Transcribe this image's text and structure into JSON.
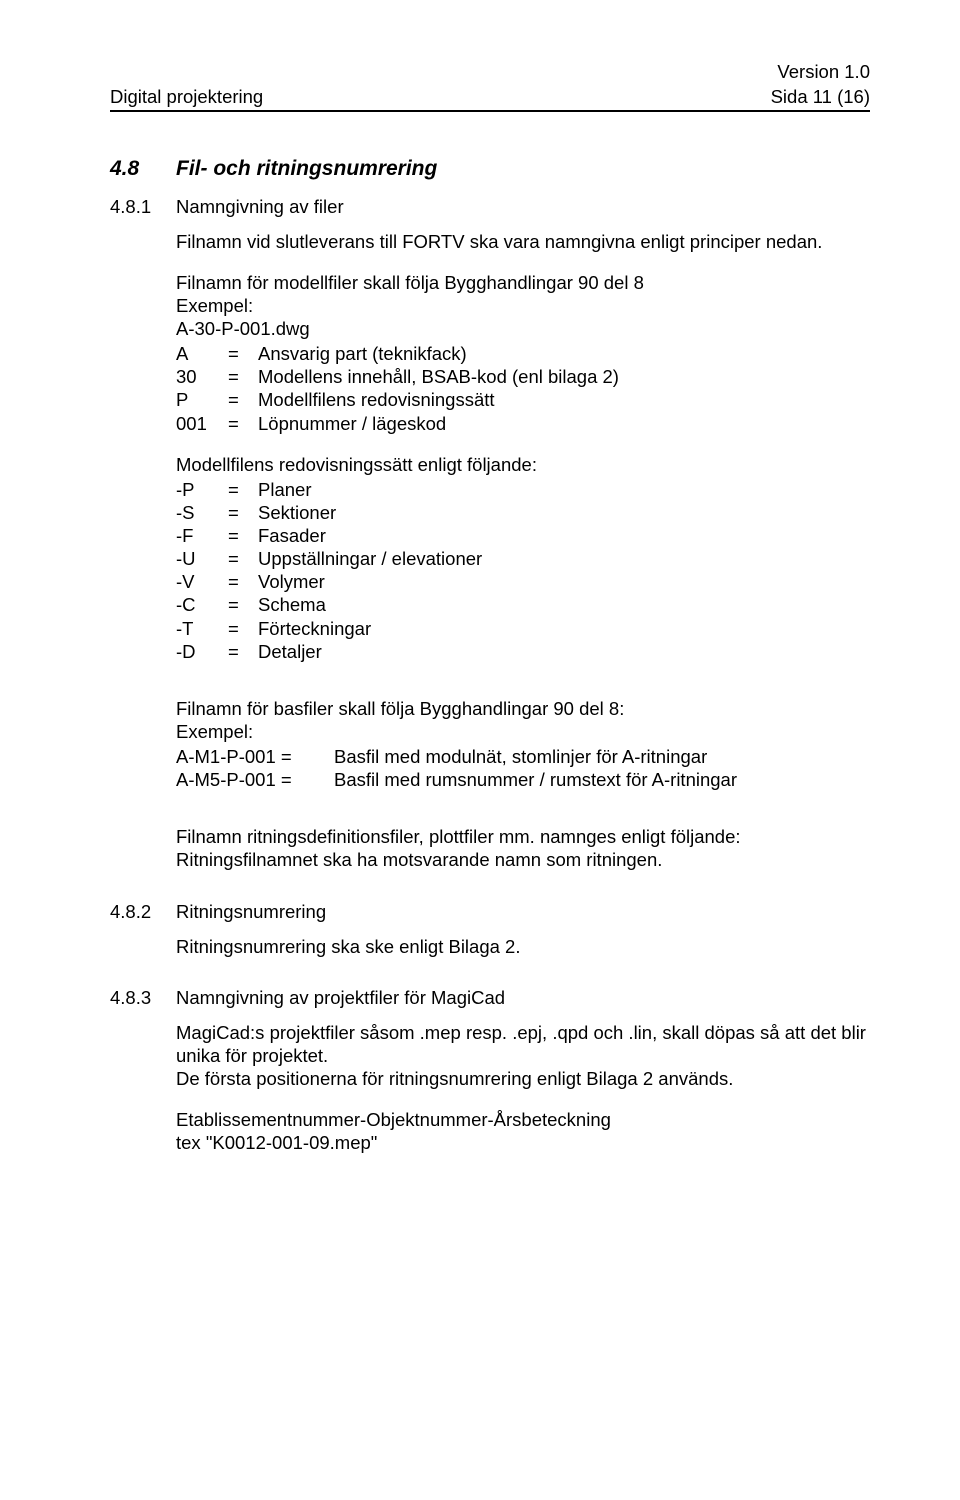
{
  "header": {
    "version": "Version 1.0",
    "doc_title": "Digital projektering",
    "page_ref": "Sida  11 (16)"
  },
  "s48": {
    "num": "4.8",
    "title": "Fil- och ritningsnumrering"
  },
  "s481": {
    "num": "4.8.1",
    "title": "Namngivning av filer",
    "intro": "Filnamn vid slutleverans till FORTV ska vara namngivna enligt principer nedan.",
    "model_intro_l1": "Filnamn för modellfiler skall följa Bygghandlingar 90 del 8",
    "model_intro_l2": "Exempel:",
    "model_intro_l3": "A-30-P-001.dwg",
    "defs1": [
      {
        "c1": "A",
        "c2": "=",
        "c3": "Ansvarig part (teknikfack)"
      },
      {
        "c1": "30",
        "c2": "=",
        "c3": "Modellens innehåll, BSAB-kod (enl bilaga 2)"
      },
      {
        "c1": "P",
        "c2": "=",
        "c3": "Modellfilens redovisningssätt"
      },
      {
        "c1": "001",
        "c2": "=",
        "c3": "Löpnummer / lägeskod"
      }
    ],
    "redov_intro": "Modellfilens redovisningssätt enligt följande:",
    "defs2": [
      {
        "c1": "-P",
        "c2": "=",
        "c3": "Planer"
      },
      {
        "c1": "-S",
        "c2": "=",
        "c3": "Sektioner"
      },
      {
        "c1": "-F",
        "c2": "=",
        "c3": "Fasader"
      },
      {
        "c1": "-U",
        "c2": "=",
        "c3": "Uppställningar / elevationer"
      },
      {
        "c1": "-V",
        "c2": "=",
        "c3": "Volymer"
      },
      {
        "c1": "-C",
        "c2": "=",
        "c3": "Schema"
      },
      {
        "c1": "-T",
        "c2": "=",
        "c3": "Förteckningar"
      },
      {
        "c1": "-D",
        "c2": "=",
        "c3": "Detaljer"
      }
    ],
    "bas_l1": "Filnamn för basfiler skall följa Bygghandlingar 90 del 8:",
    "bas_l2": "Exempel:",
    "bas_rows": [
      {
        "c1": "A-M1-P-001 =",
        "c2": "Basfil med modulnät, stomlinjer för A-ritningar"
      },
      {
        "c1": "A-M5-P-001 =",
        "c2": "Basfil med rumsnummer / rumstext för A-ritningar"
      }
    ],
    "ritdef_l1": "Filnamn ritningsdefinitionsfiler, plottfiler mm. namnges enligt följande:",
    "ritdef_l2": "Ritningsfilnamnet ska ha motsvarande namn som ritningen."
  },
  "s482": {
    "num": "4.8.2",
    "title": "Ritningsnumrering",
    "body": "Ritningsnumrering ska ske enligt Bilaga 2."
  },
  "s483": {
    "num": "4.8.3",
    "title": "Namngivning av projektfiler för MagiCad",
    "p1": "MagiCad:s projektfiler såsom .mep resp. .epj, .qpd och .lin, skall döpas så att det blir unika för projektet.",
    "p2": "De första positionerna för ritningsnumrering enligt Bilaga 2 används.",
    "p3": "Etablissementnummer-Objektnummer-Årsbeteckning",
    "p4": "tex \"K0012-001-09.mep\""
  }
}
